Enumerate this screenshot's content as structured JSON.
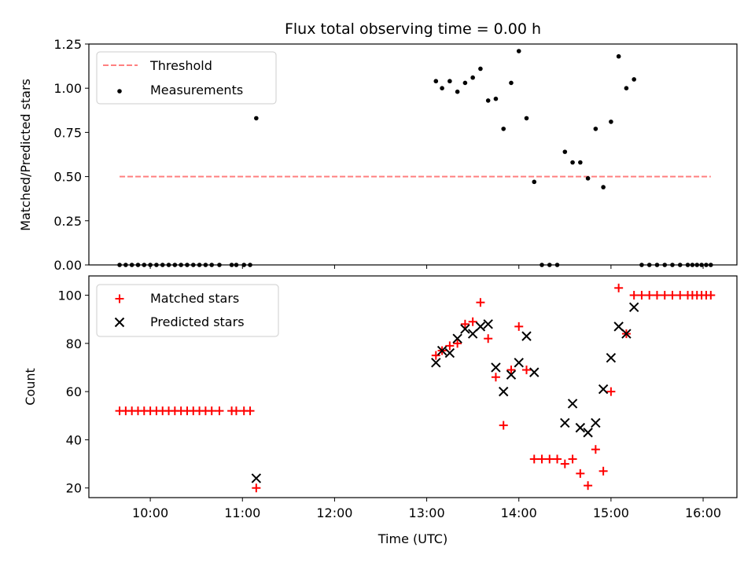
{
  "chart_data": [
    {
      "type": "scatter",
      "title": "Flux total observing time = 0.00 h",
      "xlabel": "",
      "ylabel": "Matched/Predicted stars",
      "xlim": [
        "09:20",
        "16:22"
      ],
      "ylim": [
        0,
        1.25
      ],
      "yticks": [
        0,
        0.25,
        0.5,
        0.75,
        1.0,
        1.25
      ],
      "ytick_labels": [
        "0.00",
        "0.25",
        "0.50",
        "0.75",
        "1.00",
        "1.25"
      ],
      "legend_position": "top-left",
      "threshold": {
        "name": "Threshold",
        "color": "#ff8080",
        "style": "dashed",
        "value": 0.5,
        "x_range": [
          "09:40",
          "16:05"
        ]
      },
      "series": [
        {
          "name": "Measurements",
          "color": "#000000",
          "marker": "dot",
          "points": [
            [
              "09:40",
              0
            ],
            [
              "09:44",
              0
            ],
            [
              "09:48",
              0
            ],
            [
              "09:52",
              0
            ],
            [
              "09:56",
              0
            ],
            [
              "10:00",
              0
            ],
            [
              "10:04",
              0
            ],
            [
              "10:08",
              0
            ],
            [
              "10:12",
              0
            ],
            [
              "10:16",
              0
            ],
            [
              "10:20",
              0
            ],
            [
              "10:24",
              0
            ],
            [
              "10:28",
              0
            ],
            [
              "10:32",
              0
            ],
            [
              "10:36",
              0
            ],
            [
              "10:40",
              0
            ],
            [
              "10:45",
              0
            ],
            [
              "10:53",
              0
            ],
            [
              "10:56",
              0
            ],
            [
              "11:01",
              0
            ],
            [
              "11:05",
              0
            ],
            [
              "11:09",
              0.83
            ],
            [
              "13:06",
              1.04
            ],
            [
              "13:10",
              1.0
            ],
            [
              "13:15",
              1.04
            ],
            [
              "13:20",
              0.98
            ],
            [
              "13:25",
              1.03
            ],
            [
              "13:30",
              1.06
            ],
            [
              "13:35",
              1.11
            ],
            [
              "13:40",
              0.93
            ],
            [
              "13:45",
              0.94
            ],
            [
              "13:50",
              0.77
            ],
            [
              "13:55",
              1.03
            ],
            [
              "14:00",
              1.21
            ],
            [
              "14:05",
              0.83
            ],
            [
              "14:10",
              0.47
            ],
            [
              "14:15",
              0
            ],
            [
              "14:20",
              0
            ],
            [
              "14:25",
              0
            ],
            [
              "14:30",
              0.64
            ],
            [
              "14:35",
              0.58
            ],
            [
              "14:40",
              0.58
            ],
            [
              "14:45",
              0.49
            ],
            [
              "14:50",
              0.77
            ],
            [
              "14:55",
              0.44
            ],
            [
              "15:00",
              0.81
            ],
            [
              "15:05",
              1.18
            ],
            [
              "15:10",
              1.0
            ],
            [
              "15:15",
              1.05
            ],
            [
              "15:20",
              0
            ],
            [
              "15:25",
              0
            ],
            [
              "15:30",
              0
            ],
            [
              "15:35",
              0
            ],
            [
              "15:40",
              0
            ],
            [
              "15:45",
              0
            ],
            [
              "15:50",
              0
            ],
            [
              "15:53",
              0
            ],
            [
              "15:56",
              0
            ],
            [
              "15:59",
              0
            ],
            [
              "16:02",
              0
            ],
            [
              "16:05",
              0
            ]
          ]
        }
      ]
    },
    {
      "type": "scatter",
      "title": "",
      "xlabel": "Time (UTC)",
      "ylabel": "Count",
      "xlim": [
        "09:20",
        "16:22"
      ],
      "ylim": [
        16,
        108
      ],
      "yticks": [
        20,
        40,
        60,
        80,
        100
      ],
      "ytick_labels": [
        "20",
        "40",
        "60",
        "80",
        "100"
      ],
      "xticks": [
        "10:00",
        "11:00",
        "12:00",
        "13:00",
        "14:00",
        "15:00",
        "16:00"
      ],
      "legend_position": "top-left",
      "series": [
        {
          "name": "Matched stars",
          "color": "#ff0000",
          "marker": "plus",
          "points": [
            [
              "09:40",
              52
            ],
            [
              "09:44",
              52
            ],
            [
              "09:48",
              52
            ],
            [
              "09:52",
              52
            ],
            [
              "09:56",
              52
            ],
            [
              "10:00",
              52
            ],
            [
              "10:04",
              52
            ],
            [
              "10:08",
              52
            ],
            [
              "10:12",
              52
            ],
            [
              "10:16",
              52
            ],
            [
              "10:20",
              52
            ],
            [
              "10:24",
              52
            ],
            [
              "10:28",
              52
            ],
            [
              "10:32",
              52
            ],
            [
              "10:36",
              52
            ],
            [
              "10:40",
              52
            ],
            [
              "10:45",
              52
            ],
            [
              "10:53",
              52
            ],
            [
              "10:56",
              52
            ],
            [
              "11:01",
              52
            ],
            [
              "11:05",
              52
            ],
            [
              "11:09",
              20
            ],
            [
              "13:06",
              75
            ],
            [
              "13:10",
              77
            ],
            [
              "13:15",
              79
            ],
            [
              "13:20",
              80
            ],
            [
              "13:25",
              88
            ],
            [
              "13:30",
              89
            ],
            [
              "13:35",
              97
            ],
            [
              "13:40",
              82
            ],
            [
              "13:45",
              66
            ],
            [
              "13:50",
              46
            ],
            [
              "13:55",
              69
            ],
            [
              "14:00",
              87
            ],
            [
              "14:05",
              69
            ],
            [
              "14:10",
              32
            ],
            [
              "14:15",
              32
            ],
            [
              "14:20",
              32
            ],
            [
              "14:25",
              32
            ],
            [
              "14:30",
              30
            ],
            [
              "14:35",
              32
            ],
            [
              "14:40",
              26
            ],
            [
              "14:45",
              21
            ],
            [
              "14:50",
              36
            ],
            [
              "14:55",
              27
            ],
            [
              "15:00",
              60
            ],
            [
              "15:05",
              103
            ],
            [
              "15:10",
              84
            ],
            [
              "15:15",
              100
            ],
            [
              "15:20",
              100
            ],
            [
              "15:25",
              100
            ],
            [
              "15:30",
              100
            ],
            [
              "15:35",
              100
            ],
            [
              "15:40",
              100
            ],
            [
              "15:45",
              100
            ],
            [
              "15:50",
              100
            ],
            [
              "15:53",
              100
            ],
            [
              "15:56",
              100
            ],
            [
              "15:59",
              100
            ],
            [
              "16:02",
              100
            ],
            [
              "16:05",
              100
            ]
          ]
        },
        {
          "name": "Predicted stars",
          "color": "#000000",
          "marker": "x",
          "points": [
            [
              "11:09",
              24
            ],
            [
              "13:06",
              72
            ],
            [
              "13:10",
              77
            ],
            [
              "13:15",
              76
            ],
            [
              "13:20",
              82
            ],
            [
              "13:25",
              86
            ],
            [
              "13:30",
              84
            ],
            [
              "13:35",
              87
            ],
            [
              "13:40",
              88
            ],
            [
              "13:45",
              70
            ],
            [
              "13:50",
              60
            ],
            [
              "13:55",
              67
            ],
            [
              "14:00",
              72
            ],
            [
              "14:05",
              83
            ],
            [
              "14:10",
              68
            ],
            [
              "14:30",
              47
            ],
            [
              "14:35",
              55
            ],
            [
              "14:40",
              45
            ],
            [
              "14:45",
              43
            ],
            [
              "14:50",
              47
            ],
            [
              "14:55",
              61
            ],
            [
              "15:00",
              74
            ],
            [
              "15:05",
              87
            ],
            [
              "15:10",
              84
            ],
            [
              "15:15",
              95
            ]
          ]
        }
      ]
    }
  ]
}
